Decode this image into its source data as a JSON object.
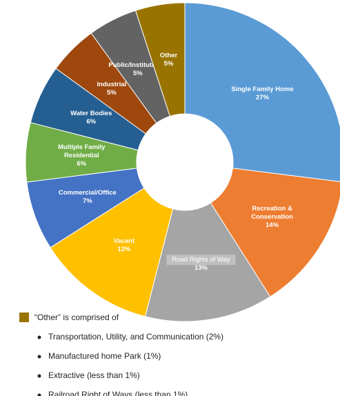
{
  "chart_data": {
    "type": "donut",
    "categories": [
      "Single Family Home",
      "Recreation & Conservation",
      "Road Rights of Way",
      "Vacant",
      "Commercial/Office",
      "Multiple Family Residential",
      "Water Bodies",
      "Industrial",
      "Public/Institutional",
      "Other"
    ],
    "values": [
      27,
      14,
      13,
      12,
      7,
      6,
      6,
      5,
      5,
      5
    ],
    "value_labels": [
      "27%",
      "14%",
      "13%",
      "12%",
      "7%",
      "6%",
      "6%",
      "5%",
      "5%",
      "5%"
    ],
    "colors": [
      "#5b9bd5",
      "#ed7d31",
      "#a5a5a5",
      "#ffc000",
      "#4472c4",
      "#70ad47",
      "#255e91",
      "#9e480e",
      "#636363",
      "#997300"
    ]
  },
  "note": {
    "title": "“Other” is comprised of",
    "items": [
      "Transportation, Utility, and Communication (2%)",
      "Manufactured home Park (1%)",
      "Extractive (less than 1%)",
      "Railroad Right of Ways (less than 1%)"
    ]
  }
}
